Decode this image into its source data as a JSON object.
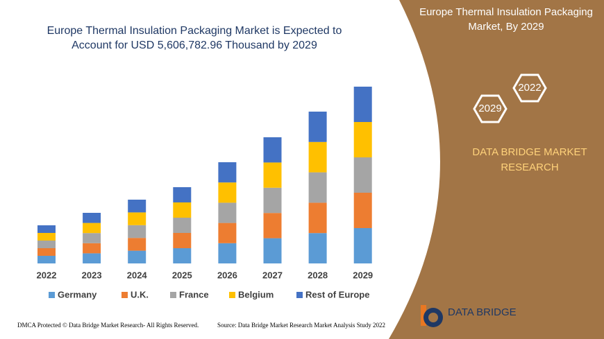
{
  "chart_data": {
    "type": "stacked-bar",
    "title": "Europe Thermal Insulation Packaging Market is Expected to Account for USD 5,606,782.96 Thousand by 2029",
    "categories": [
      "2022",
      "2023",
      "2024",
      "2025",
      "2026",
      "2027",
      "2028",
      "2029"
    ],
    "series": [
      {
        "name": "Germany",
        "color": "#5b9bd5",
        "values": [
          11,
          14.6,
          18.4,
          22,
          29.2,
          36.4,
          43.8,
          51
        ]
      },
      {
        "name": "U.K.",
        "color": "#ed7d31",
        "values": [
          11,
          14.6,
          18.4,
          22,
          29.2,
          36.4,
          43.8,
          51
        ]
      },
      {
        "name": "France",
        "color": "#a5a5a5",
        "values": [
          11,
          14.6,
          18.4,
          22,
          29.2,
          36.4,
          43.8,
          51
        ]
      },
      {
        "name": "Belgium",
        "color": "#ffc000",
        "values": [
          11,
          14.6,
          18.4,
          22,
          29.2,
          36.4,
          43.8,
          51
        ]
      },
      {
        "name": "Rest of Europe",
        "color": "#4472c4",
        "values": [
          11,
          14.6,
          18.4,
          22,
          29.2,
          36.4,
          43.8,
          51
        ]
      }
    ],
    "legend": "bottom"
  },
  "panel": {
    "title": "Europe Thermal Insulation Packaging Market, By 2029",
    "hex_years": [
      "2022",
      "2029"
    ],
    "brand": "DATA BRIDGE MARKET RESEARCH",
    "logo": "DATA BRIDGE"
  },
  "footer": {
    "left": "DMCA Protected © Data Bridge Market Research- All Rights Reserved.",
    "right": "Source: Data Bridge Market Research Market Analysis Study 2022"
  }
}
